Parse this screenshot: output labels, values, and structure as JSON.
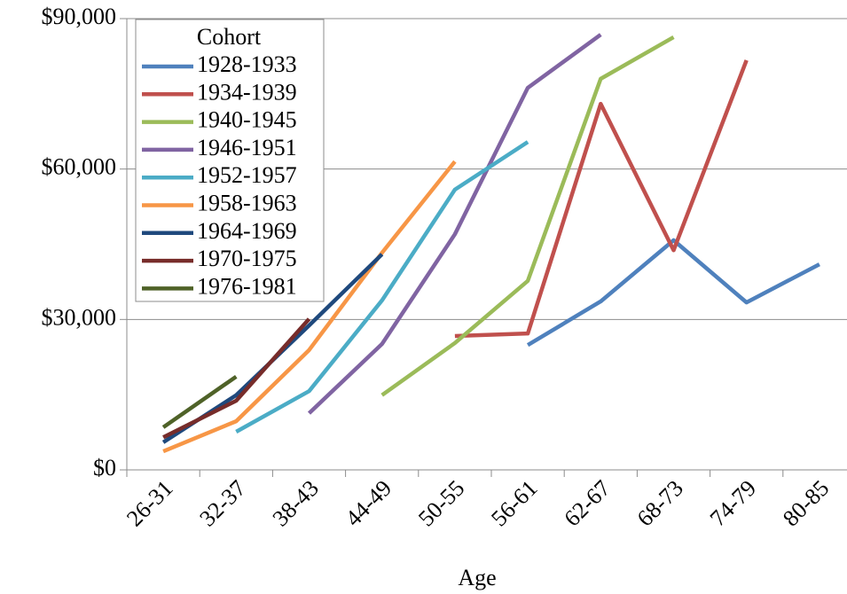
{
  "chart_data": {
    "type": "line",
    "x_label": "Age",
    "legend_title": "Cohort",
    "legend": "top-left",
    "grid": true,
    "categories": [
      "26-31",
      "32-37",
      "38-43",
      "44-49",
      "50-55",
      "56-61",
      "62-67",
      "68-73",
      "74-79",
      "80-85"
    ],
    "ylim": [
      0,
      90000
    ],
    "yticks": [
      {
        "value": 0,
        "label": "$0"
      },
      {
        "value": 30000,
        "label": "$30,000"
      },
      {
        "value": 60000,
        "label": "$60,000"
      },
      {
        "value": 90000,
        "label": "$90,000"
      }
    ],
    "series": [
      {
        "name": "1928-1933",
        "color": "#4f81bd",
        "values": [
          null,
          null,
          null,
          null,
          null,
          24900,
          33600,
          45800,
          33400,
          41000
        ]
      },
      {
        "name": "1934-1939",
        "color": "#c0504d",
        "values": [
          null,
          null,
          null,
          null,
          26700,
          27200,
          73000,
          43800,
          81700,
          null
        ]
      },
      {
        "name": "1940-1945",
        "color": "#9bbb59",
        "values": [
          null,
          null,
          null,
          14900,
          25300,
          37700,
          78000,
          86300,
          null,
          null
        ]
      },
      {
        "name": "1946-1951",
        "color": "#8064a2",
        "values": [
          null,
          null,
          11300,
          25100,
          47000,
          76200,
          86800,
          null,
          null,
          null
        ]
      },
      {
        "name": "1952-1957",
        "color": "#4bacc6",
        "values": [
          null,
          7600,
          15700,
          33800,
          55900,
          65400,
          null,
          null,
          null,
          null
        ]
      },
      {
        "name": "1958-1963",
        "color": "#f79646",
        "values": [
          3700,
          9700,
          23900,
          43300,
          61500,
          null,
          null,
          null,
          null,
          null
        ]
      },
      {
        "name": "1964-1969",
        "color": "#1f497d",
        "values": [
          5500,
          14900,
          28800,
          43000,
          null,
          null,
          null,
          null,
          null,
          null
        ]
      },
      {
        "name": "1970-1975",
        "color": "#772c2a",
        "values": [
          6500,
          13800,
          30100,
          null,
          null,
          null,
          null,
          null,
          null,
          null
        ]
      },
      {
        "name": "1976-1981",
        "color": "#4f6228",
        "values": [
          8500,
          18600,
          null,
          null,
          null,
          null,
          null,
          null,
          null,
          null
        ]
      }
    ]
  }
}
